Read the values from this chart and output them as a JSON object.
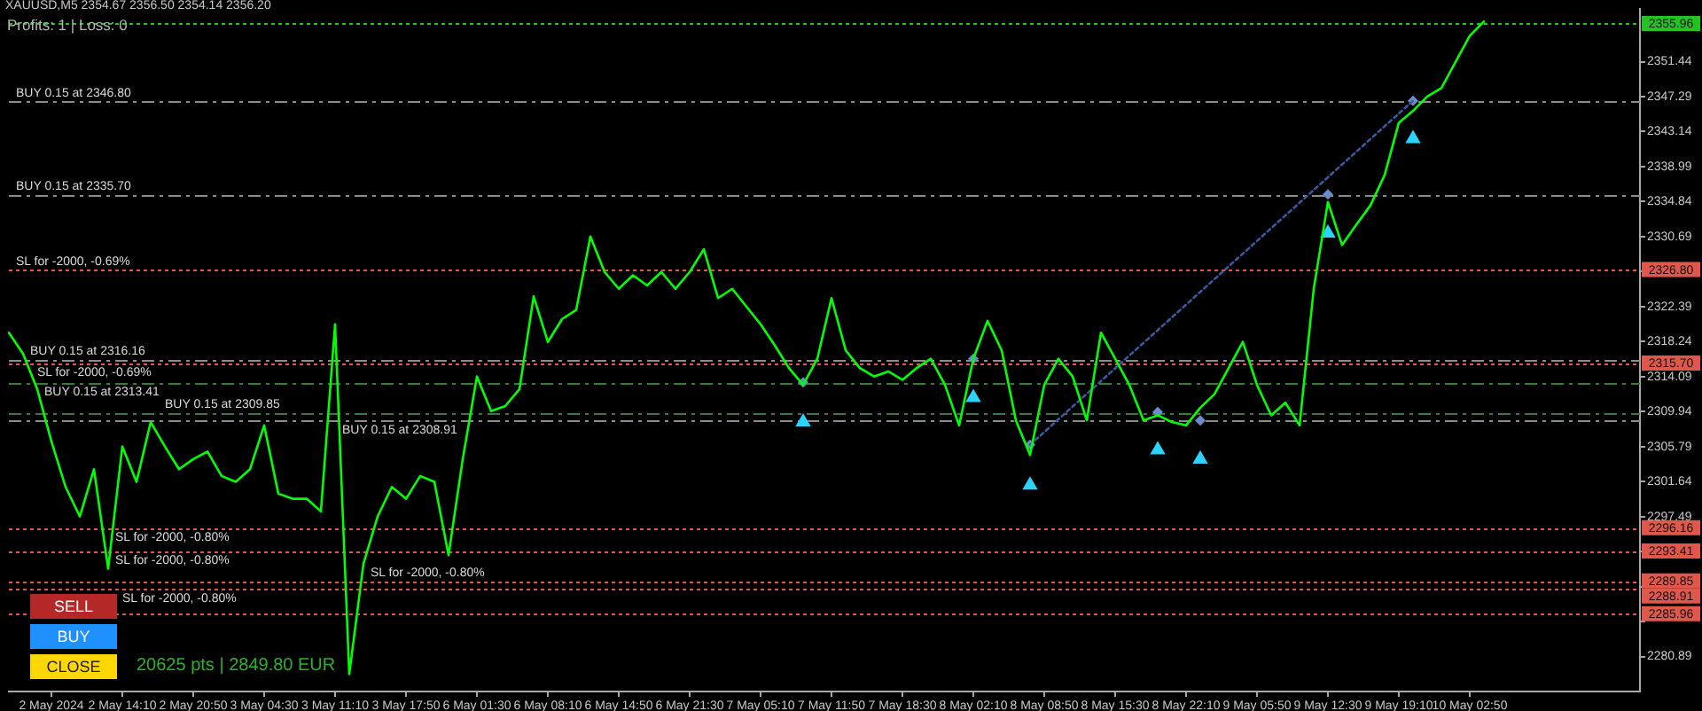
{
  "chart_data": {
    "type": "line",
    "title": "XAUUSD,M5 2354.67 2356.50 2354.14 2356.20",
    "categories": [
      null,
      null,
      null,
      "2 May 2024",
      null,
      null,
      null,
      null,
      "2 May 14:10",
      null,
      null,
      null,
      null,
      "2 May 20:50",
      null,
      null,
      null,
      null,
      "3 May 04:30",
      null,
      null,
      null,
      null,
      "3 May 11:10",
      null,
      null,
      null,
      null,
      "3 May 17:50",
      null,
      null,
      null,
      null,
      "6 May 01:30",
      null,
      null,
      null,
      null,
      "6 May 08:10",
      null,
      null,
      null,
      null,
      "6 May 14:50",
      null,
      null,
      null,
      null,
      "6 May 21:30",
      null,
      null,
      null,
      null,
      "7 May 05:10",
      null,
      null,
      null,
      null,
      "7 May 11:50",
      null,
      null,
      null,
      null,
      "7 May 18:30",
      null,
      null,
      null,
      null,
      "8 May 02:10",
      null,
      null,
      null,
      null,
      "8 May 08:50",
      null,
      null,
      null,
      null,
      "8 May 15:30",
      null,
      null,
      null,
      null,
      "8 May 22:10",
      null,
      null,
      null,
      null,
      "9 May 05:50",
      null,
      null,
      null,
      null,
      "9 May 12:30",
      null,
      null,
      null,
      null,
      "9 May 19:10",
      null,
      null,
      null,
      null,
      "10 May 02:50",
      null,
      null,
      null,
      null,
      null,
      null,
      null,
      null,
      null,
      null,
      null,
      null
    ],
    "series": [
      {
        "color": "#00ff00",
        "values": [
          2319.3,
          2316.8,
          2312.6,
          2306.4,
          2301.0,
          2297.5,
          2303.1,
          2291.3,
          2305.8,
          2301.6,
          2308.7,
          2305.8,
          2303.1,
          2304.3,
          2305.2,
          2302.3,
          2301.6,
          2303.1,
          2308.3,
          2300.2,
          2299.6,
          2299.6,
          2298.1,
          2320.3,
          2278.8,
          2291.9,
          2297.5,
          2301.0,
          2299.6,
          2302.3,
          2301.6,
          2292.9,
          2304.3,
          2314.1,
          2310.0,
          2310.6,
          2312.6,
          2323.6,
          2318.2,
          2320.9,
          2322.0,
          2330.7,
          2326.5,
          2324.5,
          2326.1,
          2324.9,
          2326.5,
          2324.5,
          2326.5,
          2329.2,
          2323.4,
          2324.5,
          2322.4,
          2320.3,
          2317.8,
          2315.1,
          2313.1,
          2316.2,
          2323.4,
          2317.2,
          2315.1,
          2314.1,
          2314.7,
          2313.7,
          2315.1,
          2316.2,
          2313.1,
          2308.3,
          2316.2,
          2320.7,
          2317.2,
          2308.9,
          2304.8,
          2313.1,
          2316.2,
          2314.1,
          2308.9,
          2319.3,
          2316.2,
          2313.1,
          2308.9,
          2309.5,
          2308.7,
          2308.3,
          2310.4,
          2312.0,
          2315.1,
          2318.2,
          2313.1,
          2309.5,
          2311.0,
          2308.3,
          2324.5,
          2334.8,
          2329.7,
          2332.1,
          2334.4,
          2338.0,
          2344.2,
          2345.6,
          2347.3,
          2348.3,
          2351.4,
          2354.5,
          2356.2,
          null,
          null,
          null,
          null,
          null,
          null,
          null,
          null,
          null,
          null,
          null
        ]
      },
      {
        "type": "line",
        "color": "#3a5aa0",
        "line_style": "dotted",
        "values": [
          null,
          null,
          null,
          null,
          null,
          null,
          null,
          null,
          null,
          null,
          null,
          null,
          null,
          null,
          null,
          null,
          null,
          null,
          null,
          null,
          null,
          null,
          null,
          null,
          null,
          null,
          null,
          null,
          null,
          null,
          null,
          null,
          null,
          null,
          null,
          null,
          null,
          null,
          null,
          null,
          null,
          null,
          null,
          null,
          null,
          null,
          null,
          null,
          null,
          null,
          null,
          null,
          null,
          null,
          null,
          null,
          null,
          null,
          null,
          null,
          null,
          null,
          null,
          null,
          null,
          null,
          null,
          null,
          null,
          null,
          null,
          null,
          2306.0,
          null,
          null,
          null,
          null,
          null,
          null,
          null,
          null,
          null,
          null,
          null,
          null,
          null,
          null,
          null,
          null,
          null,
          null,
          null,
          null,
          null,
          null,
          null,
          null,
          null,
          null,
          2346.8,
          null,
          null,
          null,
          null,
          null,
          null,
          null,
          null,
          null,
          null,
          null,
          null,
          null,
          null,
          null,
          null
        ]
      },
      {
        "type": "scatter",
        "color": "#6a8cc8",
        "marker": "diamond",
        "values": [
          null,
          null,
          null,
          null,
          null,
          null,
          null,
          null,
          null,
          null,
          null,
          null,
          null,
          null,
          null,
          null,
          null,
          null,
          null,
          null,
          null,
          null,
          null,
          null,
          null,
          null,
          null,
          null,
          null,
          null,
          null,
          null,
          null,
          null,
          null,
          null,
          null,
          null,
          null,
          null,
          null,
          null,
          null,
          null,
          null,
          null,
          null,
          null,
          null,
          null,
          null,
          null,
          null,
          null,
          null,
          null,
          2313.4,
          null,
          null,
          null,
          null,
          null,
          null,
          null,
          null,
          null,
          null,
          null,
          2316.2,
          null,
          null,
          null,
          2306.0,
          null,
          null,
          null,
          null,
          null,
          null,
          null,
          null,
          2309.9,
          null,
          null,
          2308.9,
          null,
          null,
          null,
          null,
          null,
          null,
          null,
          null,
          2335.7,
          null,
          null,
          null,
          null,
          null,
          2346.8,
          null,
          null,
          null,
          null,
          null,
          null,
          null,
          null,
          null,
          null,
          null,
          null,
          null,
          null,
          null,
          null
        ]
      },
      {
        "type": "scatter",
        "color": "#2ad4ff",
        "marker": "triangle",
        "values": [
          null,
          null,
          null,
          null,
          null,
          null,
          null,
          null,
          null,
          null,
          null,
          null,
          null,
          null,
          null,
          null,
          null,
          null,
          null,
          null,
          null,
          null,
          null,
          null,
          null,
          null,
          null,
          null,
          null,
          null,
          null,
          null,
          null,
          null,
          null,
          null,
          null,
          null,
          null,
          null,
          null,
          null,
          null,
          null,
          null,
          null,
          null,
          null,
          null,
          null,
          null,
          null,
          null,
          null,
          null,
          null,
          2308.7,
          null,
          null,
          null,
          null,
          null,
          null,
          null,
          null,
          null,
          null,
          null,
          2311.6,
          null,
          null,
          null,
          2301.2,
          null,
          null,
          null,
          null,
          null,
          null,
          null,
          null,
          2305.4,
          null,
          null,
          2304.3,
          null,
          null,
          null,
          null,
          null,
          null,
          null,
          null,
          2331.1,
          null,
          null,
          null,
          null,
          null,
          2342.3,
          null,
          null,
          null,
          null,
          null,
          null,
          null,
          null,
          null,
          null,
          null,
          null,
          null,
          null,
          null,
          null
        ]
      }
    ],
    "marker": "none",
    "ylim": [
      2276.74,
      2357.66
    ],
    "yticks": [
      2280.89,
      {
        "value": 2285.04,
        "label": null
      },
      {
        "value": 2289.19,
        "label": null
      },
      {
        "value": 2293.34,
        "label": null
      },
      2297.49,
      2301.64,
      2305.79,
      2309.94,
      2314.09,
      2318.24,
      2322.39,
      {
        "value": 2326.54,
        "label": null
      },
      2330.69,
      2334.84,
      2338.99,
      2343.14,
      2347.29,
      2351.44
    ],
    "ref_lines": [
      {
        "axis": "y",
        "value": 2355.96,
        "label": null,
        "color": "#22c322",
        "line_style": "dotted"
      },
      {
        "axis": "y",
        "value": 2346.8,
        "label": "BUY 0.15 at 2346.80",
        "color": "#8c8c8c",
        "line_style": "dashed"
      },
      {
        "axis": "y",
        "value": 2335.7,
        "label": "BUY 0.15 at 2335.70",
        "color": "#8c8c8c",
        "line_style": "dashed"
      },
      {
        "axis": "y",
        "value": 2326.8,
        "label": "SL for -2000, -0.69%",
        "color": "#e0584c",
        "line_style": "dotted"
      },
      {
        "axis": "y",
        "value": 2316.16,
        "label": "BUY 0.15 at 2316.16",
        "color": "#8c8c8c",
        "line_style": "dashed"
      },
      {
        "axis": "y",
        "value": 2315.7,
        "label": "SL for -2000, -0.69%",
        "color": "#e0584c",
        "line_style": "dotted"
      },
      {
        "axis": "y",
        "value": 2313.41,
        "label": "BUY 0.15 at 2313.41",
        "color": "#3c7a3c",
        "line_style": "dashed"
      },
      {
        "axis": "y",
        "value": 2309.85,
        "label": "BUY 0.15 at 2309.85",
        "color": "#3c7a3c",
        "line_style": "dashed"
      },
      {
        "axis": "y",
        "value": 2308.91,
        "label": "BUY 0.15 at 2308.91",
        "color": "#8c8c8c",
        "line_style": "dashed"
      },
      {
        "axis": "y",
        "value": 2296.16,
        "label": "SL for -2000, -0.80%",
        "color": "#e0584c",
        "line_style": "dotted"
      },
      {
        "axis": "y",
        "value": 2293.41,
        "label": "SL for -2000, -0.80%",
        "color": "#e0584c",
        "line_style": "dotted"
      },
      {
        "axis": "y",
        "value": 2289.85,
        "label": "SL for -2000, -0.80%",
        "color": "#e0584c",
        "line_style": "dotted"
      },
      {
        "axis": "y",
        "value": 2288.91,
        "label": "SL for -2000, -0.80%",
        "color": "#e0584c",
        "line_style": "dotted"
      },
      {
        "axis": "y",
        "value": 2285.96,
        "label": null,
        "color": "#e0584c",
        "line_style": "dotted"
      }
    ],
    "annotations": [
      "Profits: 1 | Loss: 0",
      "SELL",
      "BUY",
      "CLOSE",
      "20625 pts | 2849.80 EUR",
      "2355.96",
      "2326.80",
      "2315.70",
      "2296.16",
      "2293.41",
      "2289.85",
      "2288.91",
      "2285.96"
    ]
  }
}
